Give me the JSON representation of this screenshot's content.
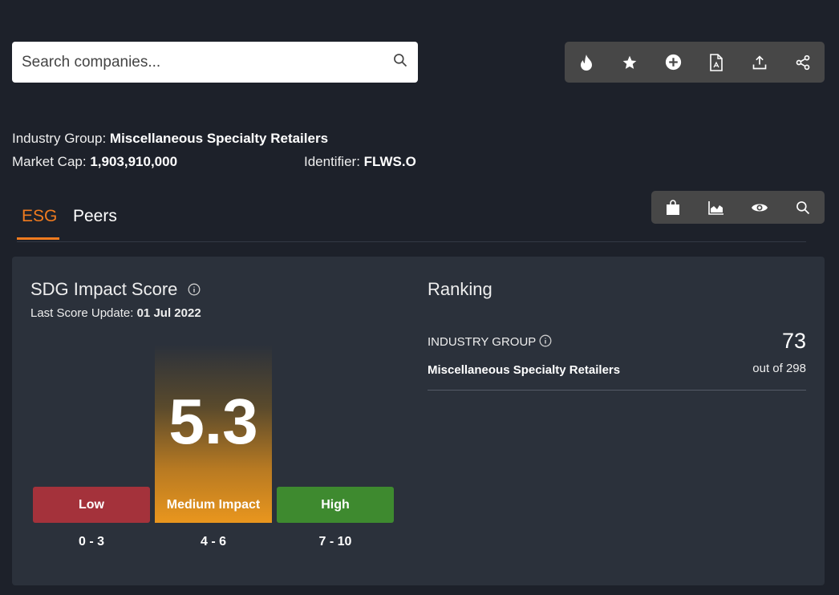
{
  "search": {
    "placeholder": "Search companies..."
  },
  "toolbar_top": [
    "fire-icon",
    "star-icon",
    "add-circle-icon",
    "pdf-icon",
    "upload-icon",
    "share-icon"
  ],
  "toolbar_tabs": [
    "shopping-bag-icon",
    "area-chart-icon",
    "eye-icon",
    "search-icon"
  ],
  "company": {
    "industry_group_label": "Industry Group:",
    "industry_group": "Miscellaneous Specialty Retailers",
    "market_cap_label": "Market Cap:",
    "market_cap": "1,903,910,000",
    "identifier_label": "Identifier:",
    "identifier": "FLWS.O"
  },
  "tabs": [
    {
      "label": "ESG",
      "active": true
    },
    {
      "label": "Peers",
      "active": false
    }
  ],
  "score": {
    "title": "SDG Impact Score",
    "update_label": "Last Score Update:",
    "update_date": "01 Jul 2022",
    "value": "5.3",
    "bands": [
      {
        "label": "Low",
        "range": "0 - 3",
        "color": "#a4323b"
      },
      {
        "label": "Medium Impact",
        "range": "4 - 6",
        "color": "#e9961e"
      },
      {
        "label": "High",
        "range": "7 - 10",
        "color": "#3e8a2f"
      }
    ]
  },
  "ranking": {
    "title": "Ranking",
    "group_label": "INDUSTRY GROUP",
    "group_name": "Miscellaneous Specialty Retailers",
    "rank": "73",
    "out_of": "out of 298"
  },
  "colors": {
    "accent": "#f07b1f"
  }
}
